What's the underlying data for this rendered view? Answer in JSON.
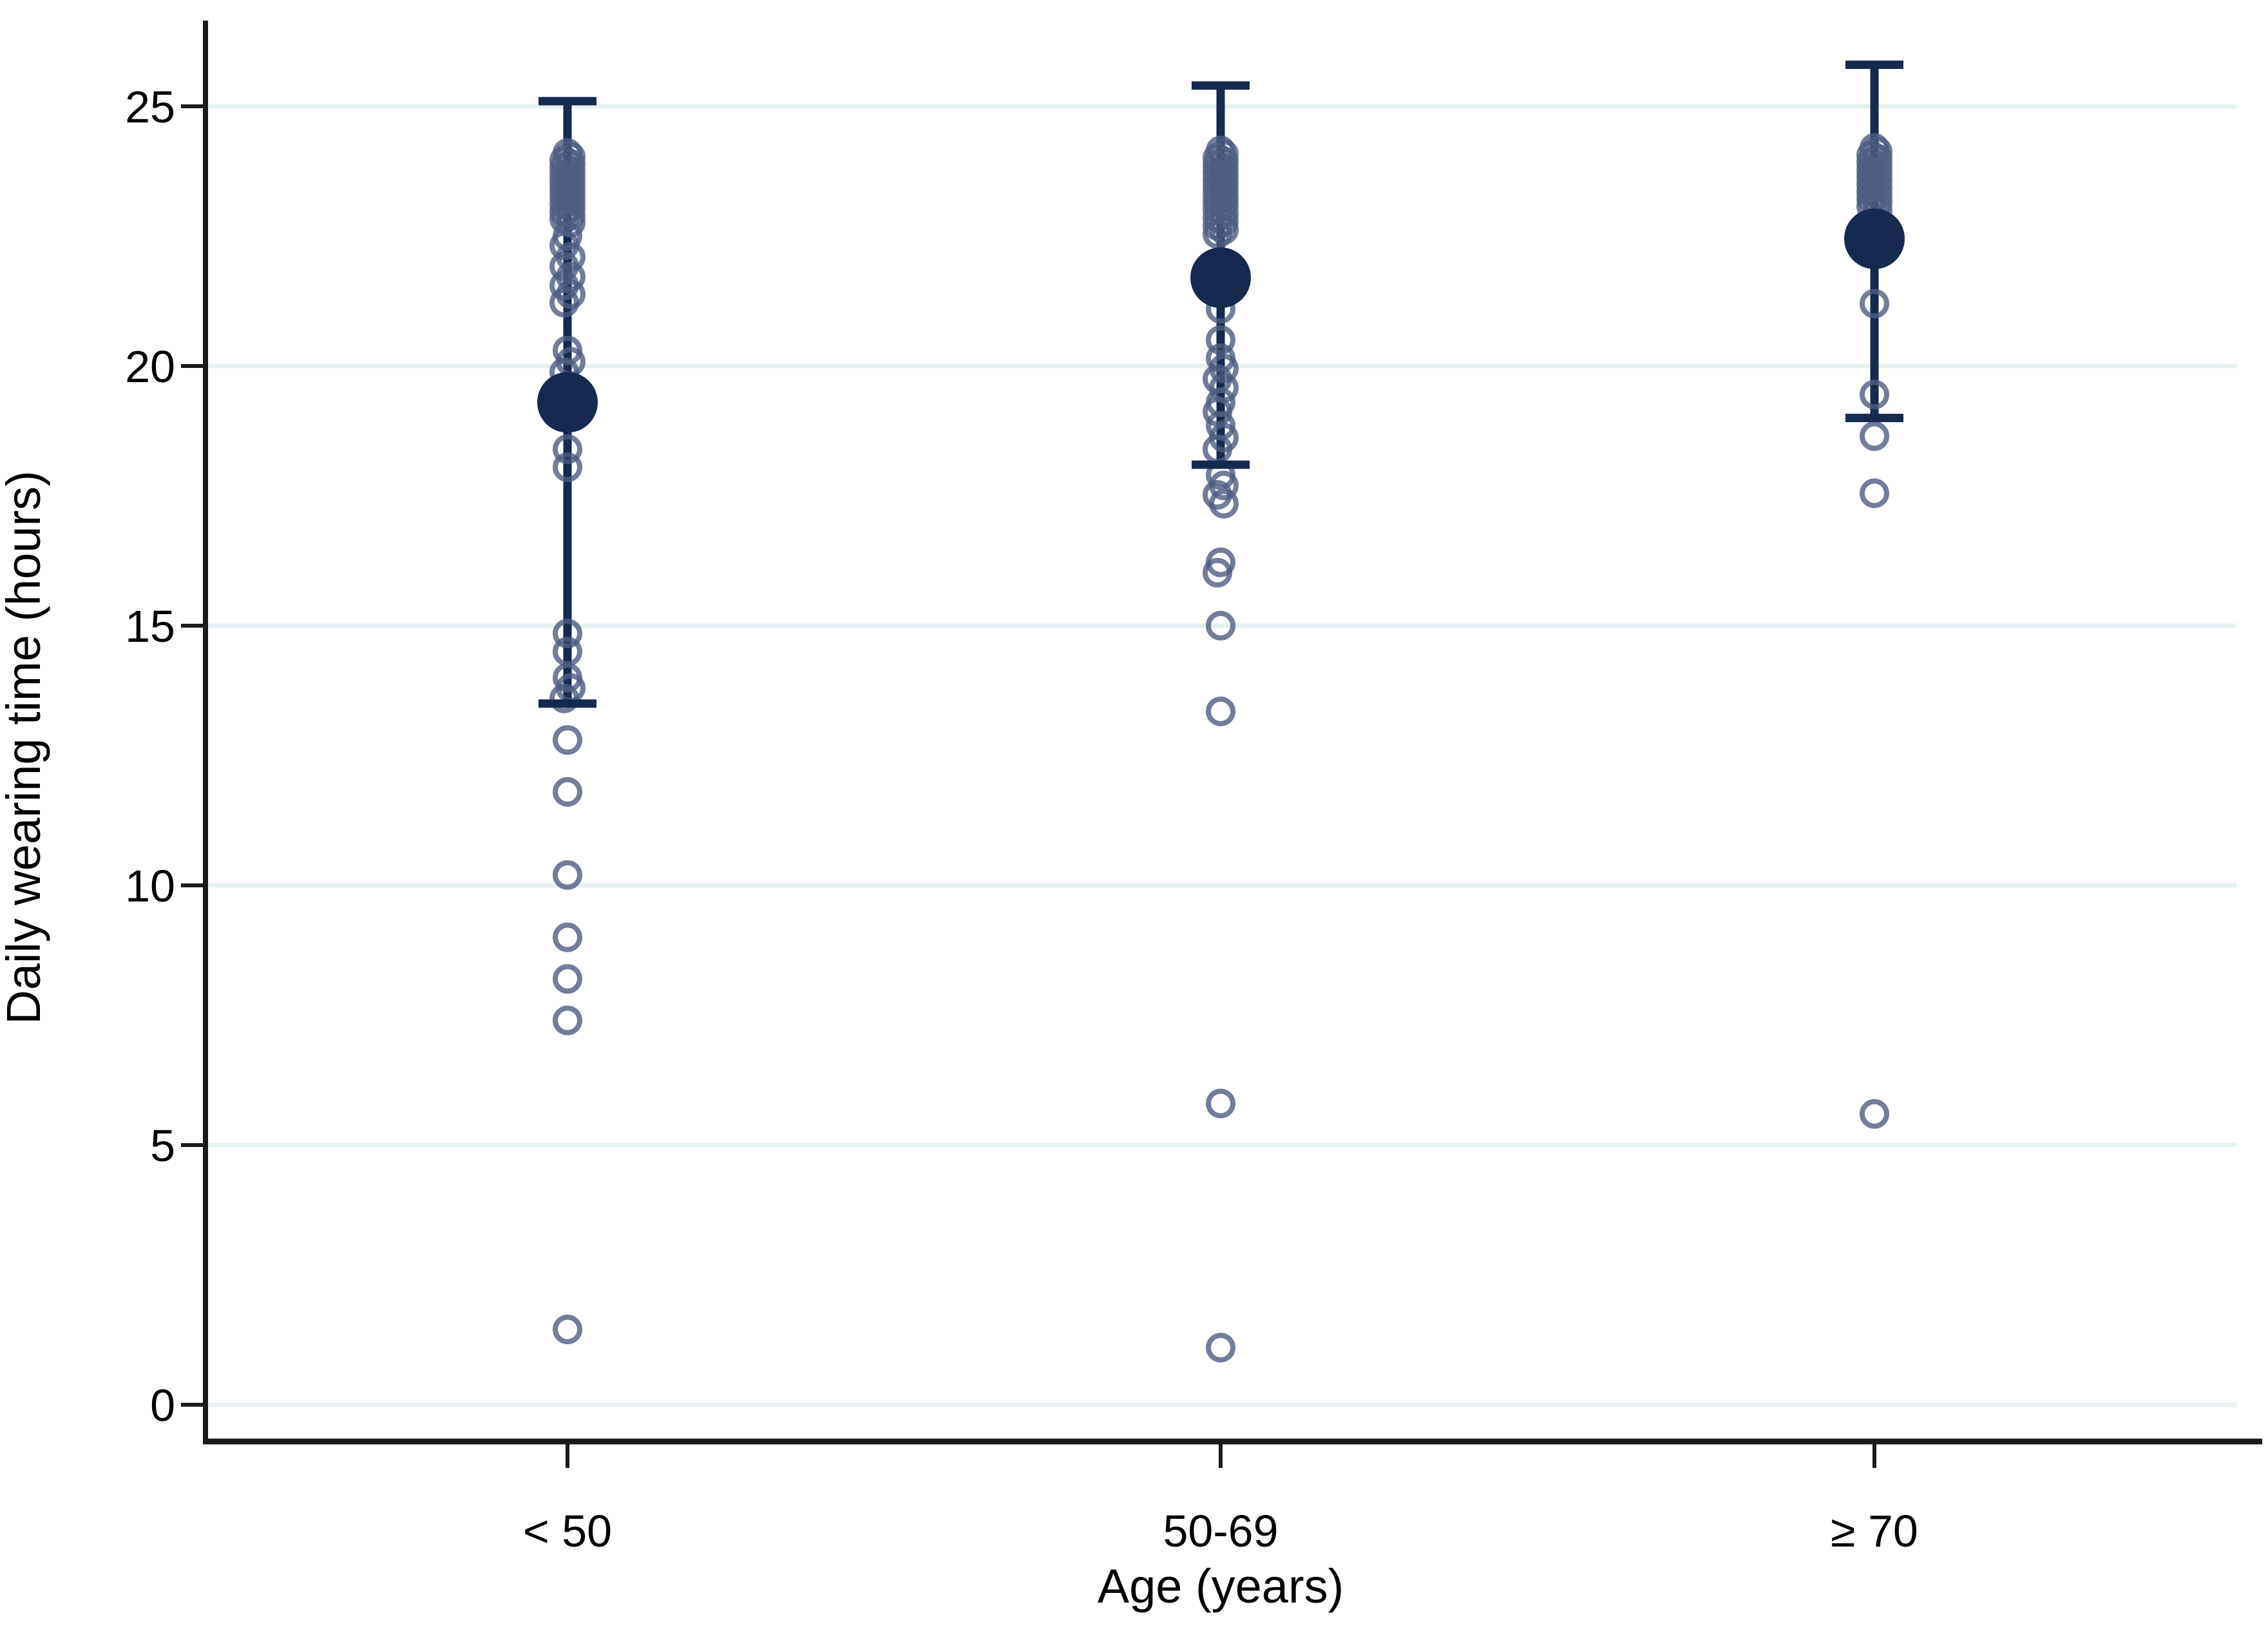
{
  "colors": {
    "navy": "#16294e",
    "marker_ring": "#4d5c80",
    "gridline": "#e7f0f2",
    "axis": "#1a1a1a",
    "text": "#000000",
    "background": "#ffffff"
  },
  "chart_data": {
    "type": "scatter",
    "subtype": "strip-plot-with-mean-sd-error-bars",
    "title": "",
    "xlabel": "Age (years)",
    "ylabel": "Daily wearing time (hours)",
    "categories": [
      "< 50",
      "50-69",
      "≥ 70"
    ],
    "yticks": [
      0,
      5,
      10,
      15,
      20,
      25
    ],
    "ylim": [
      -0.7,
      26.7
    ],
    "grid": "horizontal",
    "legend": "none",
    "marker_style": "open-circle",
    "mean_marker_style": "large-filled-circle",
    "series": [
      {
        "name": "< 50",
        "mean": 19.3,
        "whisker_high": 25.1,
        "whisker_low": 13.5,
        "points": [
          24.1,
          24.03,
          23.96,
          23.89,
          23.82,
          23.75,
          23.68,
          23.61,
          23.54,
          23.47,
          23.4,
          23.33,
          23.26,
          23.19,
          23.12,
          23.05,
          22.97,
          22.9,
          22.83,
          22.76,
          22.5,
          22.32,
          22.1,
          21.92,
          21.72,
          21.55,
          21.38,
          21.22,
          20.3,
          20.08,
          19.88,
          18.4,
          18.05,
          14.85,
          14.5,
          14.0,
          13.8,
          13.6,
          12.8,
          11.8,
          10.2,
          9.0,
          8.2,
          7.4,
          1.45
        ]
      },
      {
        "name": "50-69",
        "mean": 21.7,
        "whisker_high": 25.4,
        "whisker_low": 18.1,
        "points": [
          24.15,
          24.08,
          24.01,
          23.94,
          23.87,
          23.8,
          23.73,
          23.66,
          23.59,
          23.52,
          23.45,
          23.38,
          23.31,
          23.24,
          23.17,
          23.1,
          23.02,
          22.94,
          22.86,
          22.78,
          22.7,
          22.62,
          22.54,
          21.1,
          20.5,
          20.15,
          19.95,
          19.75,
          19.58,
          19.3,
          19.12,
          18.85,
          18.62,
          18.4,
          17.9,
          17.7,
          17.52,
          17.35,
          16.22,
          16.02,
          15.0,
          13.35,
          5.8,
          1.1
        ]
      },
      {
        "name": "≥ 70",
        "mean": 22.45,
        "whisker_high": 25.8,
        "whisker_low": 19.0,
        "points": [
          24.2,
          24.13,
          24.06,
          23.99,
          23.92,
          23.85,
          23.78,
          23.71,
          23.64,
          23.57,
          23.5,
          23.43,
          23.36,
          23.29,
          23.22,
          23.15,
          23.07,
          23.0,
          21.2,
          19.45,
          18.65,
          17.55,
          5.6
        ]
      }
    ]
  }
}
